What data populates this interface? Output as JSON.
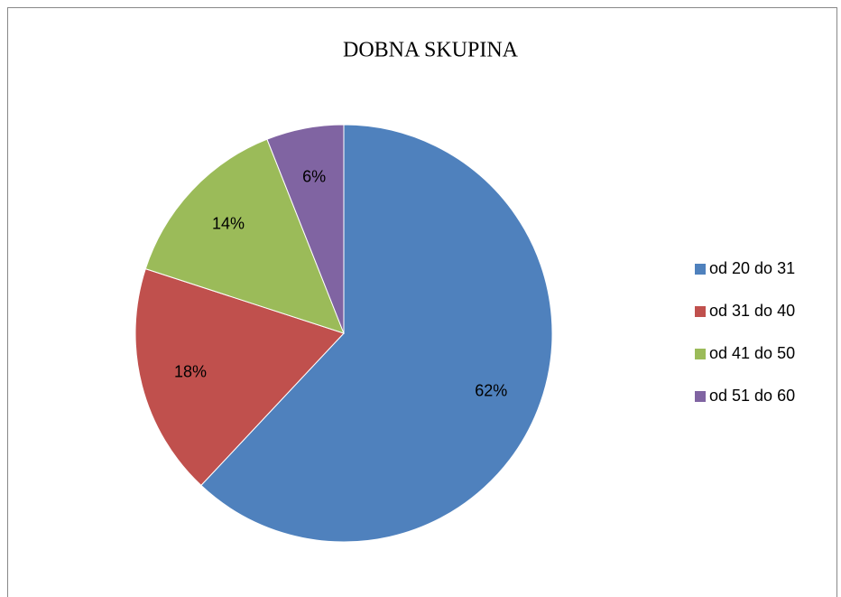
{
  "chart_data": {
    "type": "pie",
    "title": "DOBNA SKUPINA",
    "categories": [
      "od 20 do 31",
      "od 31 do 40",
      "od 41 do 50",
      "od 51 do 60"
    ],
    "values": [
      62,
      18,
      14,
      6
    ],
    "value_labels": [
      "62%",
      "18%",
      "14%",
      "6%"
    ],
    "colors": [
      "#4f81bd",
      "#c0504d",
      "#9bbb59",
      "#8064a2"
    ],
    "legend": "right"
  }
}
